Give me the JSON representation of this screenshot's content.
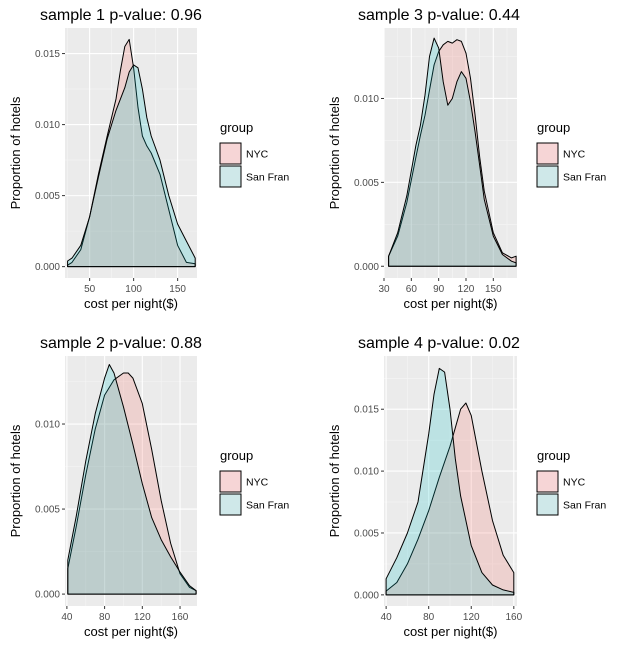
{
  "chart_data": [
    {
      "type": "area",
      "title": "sample 1 p-value:  0.96",
      "xlabel": "cost per night($)",
      "ylabel": "Proportion of hotels",
      "xlim": [
        22,
        172
      ],
      "ylim": [
        -0.0008,
        0.0168
      ],
      "xticks": [
        50,
        100,
        150
      ],
      "xtick_labels": [
        "50",
        "100",
        "150"
      ],
      "yticks": [
        0,
        0.005,
        0.01,
        0.015
      ],
      "ytick_labels": [
        "0.000",
        "0.005",
        "0.010",
        "0.015"
      ],
      "legend": {
        "title": "group",
        "position": "right",
        "entries": [
          "NYC",
          "San Fran"
        ]
      },
      "series": [
        {
          "name": "NYC",
          "color": "#F8766D",
          "x": [
            25,
            30,
            40,
            50,
            60,
            70,
            80,
            85,
            90,
            95,
            100,
            105,
            110,
            115,
            120,
            130,
            140,
            150,
            160,
            170
          ],
          "y": [
            0.0001,
            0.0003,
            0.0012,
            0.0035,
            0.0065,
            0.0092,
            0.0118,
            0.0138,
            0.0155,
            0.016,
            0.014,
            0.0112,
            0.0092,
            0.0085,
            0.008,
            0.0065,
            0.004,
            0.0015,
            0.0003,
            0.0002
          ]
        },
        {
          "name": "San Fran",
          "color": "#00BFC4",
          "x": [
            25,
            30,
            40,
            50,
            60,
            70,
            80,
            90,
            95,
            100,
            105,
            110,
            115,
            120,
            130,
            140,
            150,
            160,
            170
          ],
          "y": [
            0.0004,
            0.0006,
            0.0015,
            0.0035,
            0.0063,
            0.009,
            0.011,
            0.0126,
            0.0137,
            0.0142,
            0.014,
            0.0125,
            0.0105,
            0.0092,
            0.0075,
            0.005,
            0.003,
            0.0018,
            0.0006
          ]
        }
      ]
    },
    {
      "type": "area",
      "title": "sample 3 p-value:  0.44",
      "xlabel": "cost per night($)",
      "ylabel": "Proportion of hotels",
      "xlim": [
        30,
        176
      ],
      "ylim": [
        -0.0007,
        0.0142
      ],
      "xticks": [
        30,
        60,
        90,
        120,
        150
      ],
      "xtick_labels": [
        "30",
        "60",
        "90",
        "120",
        "150"
      ],
      "yticks": [
        0,
        0.005,
        0.01
      ],
      "ytick_labels": [
        "0.000",
        "0.005",
        "0.010"
      ],
      "legend": {
        "title": "group",
        "position": "right",
        "entries": [
          "NYC",
          "San Fran"
        ]
      },
      "series": [
        {
          "name": "NYC",
          "color": "#F8766D",
          "x": [
            35,
            45,
            55,
            65,
            70,
            75,
            80,
            85,
            90,
            95,
            100,
            105,
            110,
            115,
            120,
            125,
            130,
            135,
            140,
            150,
            160,
            170,
            175
          ],
          "y": [
            0.0006,
            0.0018,
            0.0038,
            0.0065,
            0.0078,
            0.009,
            0.0105,
            0.012,
            0.0128,
            0.0132,
            0.0134,
            0.0133,
            0.0135,
            0.0134,
            0.0127,
            0.0112,
            0.009,
            0.0065,
            0.0045,
            0.002,
            0.0008,
            0.0005,
            0.0006
          ]
        },
        {
          "name": "San Fran",
          "color": "#00BFC4",
          "x": [
            35,
            45,
            55,
            65,
            70,
            75,
            80,
            85,
            90,
            95,
            100,
            105,
            110,
            115,
            120,
            125,
            130,
            135,
            140,
            150,
            160,
            170,
            175
          ],
          "y": [
            0.0006,
            0.002,
            0.0042,
            0.0072,
            0.0084,
            0.0102,
            0.0125,
            0.0136,
            0.013,
            0.011,
            0.0096,
            0.01,
            0.011,
            0.0116,
            0.0112,
            0.0098,
            0.008,
            0.006,
            0.004,
            0.0018,
            0.0007,
            0.0003,
            0.0002
          ]
        }
      ]
    },
    {
      "type": "area",
      "title": "sample 2 p-value:  0.88",
      "xlabel": "cost per night($)",
      "ylabel": "Proportion of hotels",
      "xlim": [
        38,
        178
      ],
      "ylim": [
        -0.0007,
        0.014
      ],
      "xticks": [
        40,
        80,
        120,
        160
      ],
      "xtick_labels": [
        "40",
        "80",
        "120",
        "160"
      ],
      "yticks": [
        0,
        0.005,
        0.01
      ],
      "ytick_labels": [
        "0.000",
        "0.005",
        "0.010"
      ],
      "legend": {
        "title": "group",
        "position": "right",
        "entries": [
          "NYC",
          "San Fran"
        ]
      },
      "series": [
        {
          "name": "NYC",
          "color": "#F8766D",
          "x": [
            41,
            50,
            60,
            70,
            80,
            90,
            100,
            105,
            110,
            120,
            130,
            140,
            150,
            160,
            170,
            177
          ],
          "y": [
            0.0015,
            0.004,
            0.007,
            0.0097,
            0.0117,
            0.0126,
            0.013,
            0.013,
            0.0127,
            0.0112,
            0.0085,
            0.0055,
            0.003,
            0.0012,
            0.0004,
            0.0002
          ]
        },
        {
          "name": "San Fran",
          "color": "#00BFC4",
          "x": [
            41,
            50,
            60,
            70,
            80,
            85,
            90,
            100,
            110,
            120,
            130,
            140,
            150,
            160,
            170,
            177
          ],
          "y": [
            0.002,
            0.0046,
            0.0078,
            0.0106,
            0.0127,
            0.0135,
            0.013,
            0.011,
            0.0088,
            0.0065,
            0.0045,
            0.0032,
            0.0022,
            0.0013,
            0.0005,
            0.0002
          ]
        }
      ]
    },
    {
      "type": "area",
      "title": "sample 4 p-value:  0.02",
      "xlabel": "cost per night($)",
      "ylabel": "Proportion of hotels",
      "xlim": [
        38,
        163
      ],
      "ylim": [
        -0.0009,
        0.0193
      ],
      "xticks": [
        40,
        80,
        120,
        160
      ],
      "xtick_labels": [
        "40",
        "80",
        "120",
        "160"
      ],
      "yticks": [
        0,
        0.005,
        0.01,
        0.015
      ],
      "ytick_labels": [
        "0.000",
        "0.005",
        "0.010",
        "0.015"
      ],
      "legend": {
        "title": "group",
        "position": "right",
        "entries": [
          "NYC",
          "San Fran"
        ]
      },
      "series": [
        {
          "name": "NYC",
          "color": "#F8766D",
          "x": [
            40,
            50,
            60,
            70,
            80,
            90,
            100,
            105,
            110,
            115,
            120,
            130,
            140,
            150,
            160
          ],
          "y": [
            0.0003,
            0.001,
            0.0025,
            0.0045,
            0.0068,
            0.0095,
            0.012,
            0.0135,
            0.015,
            0.0155,
            0.0145,
            0.01,
            0.006,
            0.0032,
            0.0018
          ]
        },
        {
          "name": "San Fran",
          "color": "#00BFC4",
          "x": [
            40,
            50,
            60,
            70,
            80,
            85,
            90,
            95,
            100,
            105,
            110,
            120,
            130,
            140,
            150,
            160
          ],
          "y": [
            0.0013,
            0.003,
            0.005,
            0.0075,
            0.013,
            0.0162,
            0.0183,
            0.018,
            0.015,
            0.011,
            0.008,
            0.004,
            0.0018,
            0.0008,
            0.0004,
            0.0002
          ]
        }
      ]
    }
  ]
}
